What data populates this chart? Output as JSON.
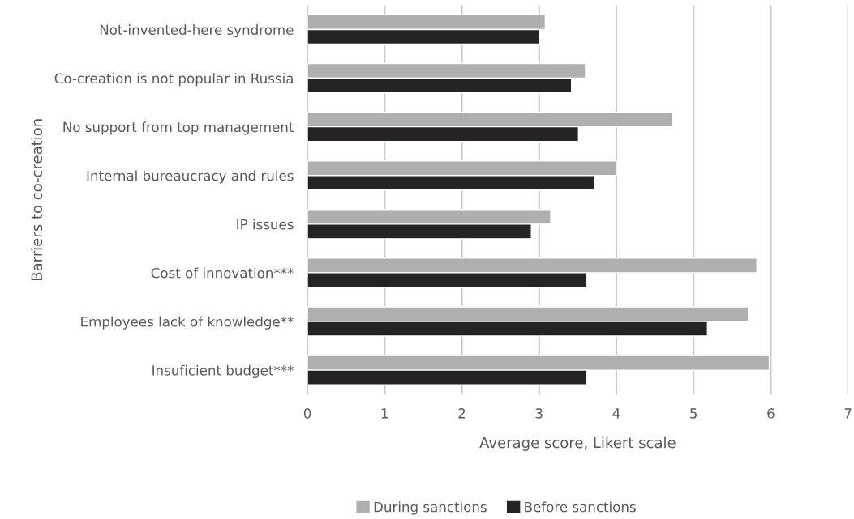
{
  "chart_data": {
    "type": "bar",
    "orientation": "horizontal",
    "categories": [
      "Not-invented-here syndrome",
      "Co-creation is not popular in Russia",
      "No support from top management",
      "Internal bureaucracy and rules",
      "IP issues",
      "Cost of innovation***",
      "Employees lack of knowledge**",
      "Insuficient budget***"
    ],
    "series": [
      {
        "name": "During sanctions",
        "color": "#afafaf",
        "values": [
          3.08,
          3.6,
          4.73,
          4.0,
          3.15,
          5.82,
          5.71,
          5.98
        ]
      },
      {
        "name": "Before sanctions",
        "color": "#252423",
        "values": [
          3.01,
          3.42,
          3.51,
          3.72,
          2.9,
          3.62,
          5.18,
          3.62
        ]
      }
    ],
    "xlabel": "Average score, Likert scale",
    "ylabel": "Barriers to co-creation",
    "xlim": [
      0,
      7
    ],
    "xticks": [
      0,
      1,
      2,
      3,
      4,
      5,
      6,
      7
    ],
    "grid": "x",
    "legend": "bottom"
  }
}
